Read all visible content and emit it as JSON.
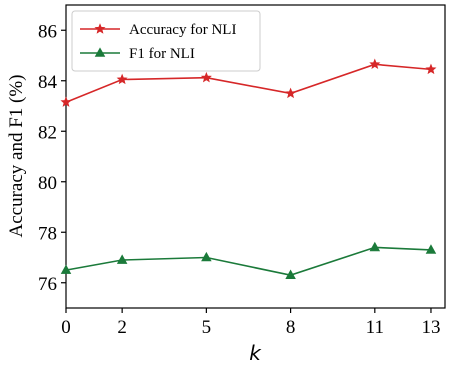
{
  "chart_data": {
    "type": "line",
    "xlabel": "k",
    "ylabel": "Accuracy and F1 (%)",
    "x": [
      0,
      2,
      5,
      8,
      11,
      13
    ],
    "xticks": [
      0,
      2,
      5,
      8,
      11,
      13
    ],
    "yticks": [
      76,
      78,
      80,
      82,
      84,
      86
    ],
    "xlim": [
      0,
      13.5
    ],
    "ylim": [
      75.0,
      87.0
    ],
    "grid": false,
    "legend_position": "top-left",
    "series": [
      {
        "name": "Accuracy for NLI",
        "values": [
          83.15,
          84.05,
          84.12,
          83.5,
          84.65,
          84.45
        ],
        "color": "#d62728",
        "marker": "star"
      },
      {
        "name": "F1 for NLI",
        "values": [
          76.5,
          76.9,
          77.0,
          76.3,
          77.4,
          77.3
        ],
        "color": "#1b7a3a",
        "marker": "triangle"
      }
    ]
  }
}
